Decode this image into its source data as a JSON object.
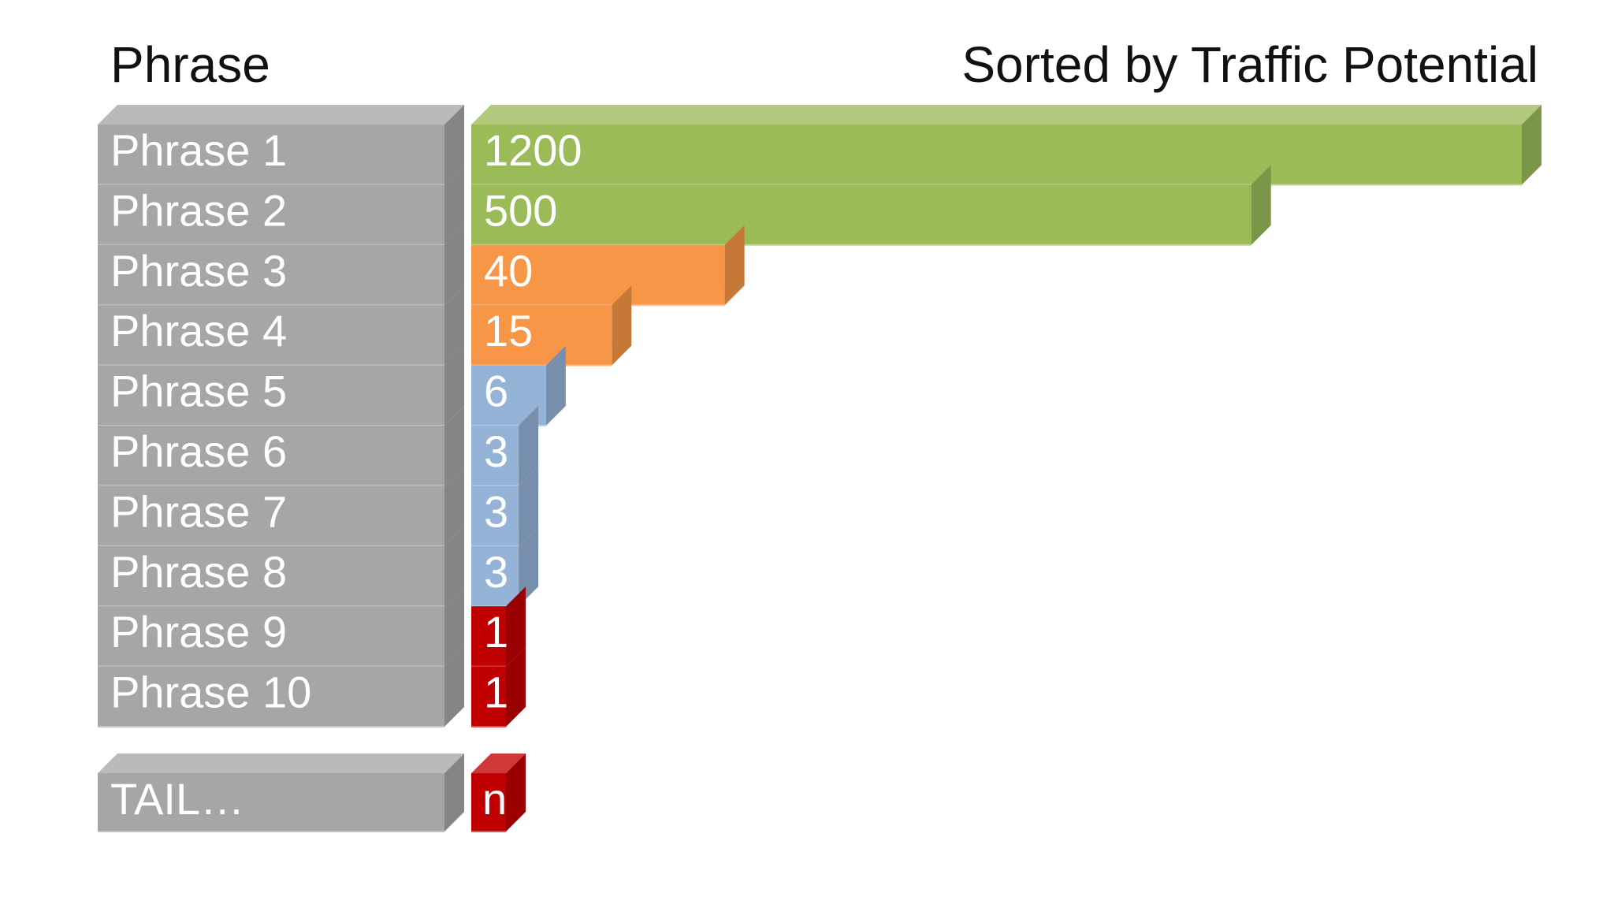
{
  "headers": {
    "left": "Phrase",
    "right": "Sorted by Traffic Potential"
  },
  "chart_data": {
    "type": "bar",
    "orientation": "horizontal",
    "title": "Sorted by Traffic Potential",
    "category_header": "Phrase",
    "categories": [
      "Phrase 1",
      "Phrase 2",
      "Phrase 3",
      "Phrase 4",
      "Phrase 5",
      "Phrase 6",
      "Phrase 7",
      "Phrase 8",
      "Phrase 9",
      "Phrase 10"
    ],
    "values": [
      1200,
      500,
      40,
      15,
      6,
      3,
      3,
      3,
      1,
      1
    ],
    "value_labels": [
      "1200",
      "500",
      "40",
      "15",
      "6",
      "3",
      "3",
      "3",
      "1",
      "1"
    ],
    "bar_colors": [
      "#9bbb59",
      "#9bbb59",
      "#f79646",
      "#f79646",
      "#95b3d7",
      "#95b3d7",
      "#95b3d7",
      "#95b3d7",
      "#c00000",
      "#c00000"
    ],
    "tail": {
      "label": "TAIL…",
      "value_label": "n",
      "color": "#c00000"
    },
    "label_box_color": "#a6a6a6",
    "axis_scale": "non-linear (not printed)",
    "grid": false,
    "legend": "none"
  }
}
